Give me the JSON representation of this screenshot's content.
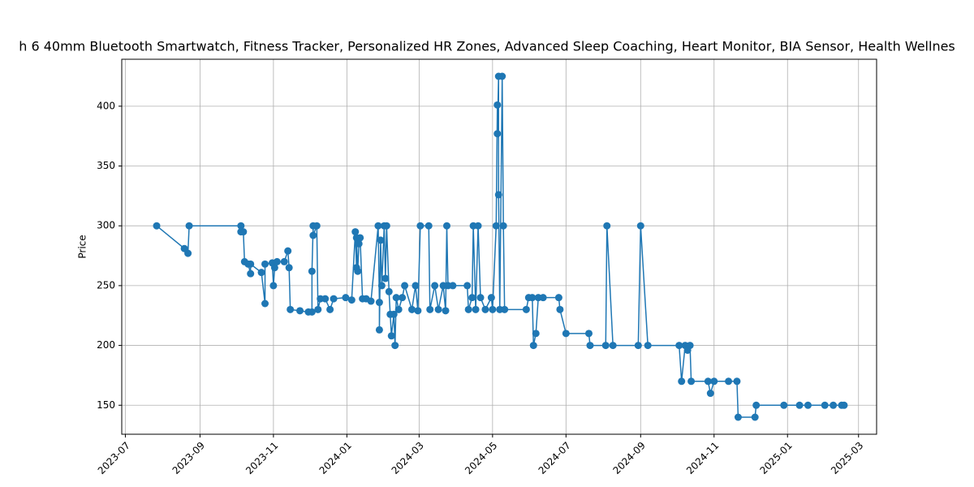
{
  "chart_data": {
    "type": "line",
    "title": "h 6 40mm Bluetooth Smartwatch, Fitness Tracker, Personalized HR Zones, Advanced Sleep Coaching, Heart Monitor, BIA Sensor, Health Wellnes",
    "y_label": "Price",
    "grid": true,
    "marker": "circle",
    "xlim": [
      "2023-06-28",
      "2025-03-16"
    ],
    "xticks": [
      {
        "value": "2023-07-01",
        "label": "2023-07"
      },
      {
        "value": "2023-09-01",
        "label": "2023-09"
      },
      {
        "value": "2023-11-01",
        "label": "2023-11"
      },
      {
        "value": "2024-01-01",
        "label": "2024-01"
      },
      {
        "value": "2024-03-01",
        "label": "2024-03"
      },
      {
        "value": "2024-05-01",
        "label": "2024-05"
      },
      {
        "value": "2024-07-01",
        "label": "2024-07"
      },
      {
        "value": "2024-09-01",
        "label": "2024-09"
      },
      {
        "value": "2024-11-01",
        "label": "2024-11"
      },
      {
        "value": "2025-01-01",
        "label": "2025-01"
      },
      {
        "value": "2025-03-01",
        "label": "2025-03"
      }
    ],
    "ylim": [
      125.75,
      439.25
    ],
    "yticks": [
      150,
      200,
      250,
      300,
      350,
      400
    ],
    "color": "#1f77b4",
    "x": [
      "2023-07-27",
      "2023-08-19",
      "2023-08-22",
      "2023-08-23",
      "2023-10-05",
      "2023-10-05",
      "2023-10-07",
      "2023-10-08",
      "2023-10-11",
      "2023-10-13",
      "2023-10-13",
      "2023-10-22",
      "2023-10-25",
      "2023-10-25",
      "2023-10-31",
      "2023-11-01",
      "2023-11-02",
      "2023-11-04",
      "2023-11-10",
      "2023-11-13",
      "2023-11-14",
      "2023-11-15",
      "2023-11-23",
      "2023-11-30",
      "2023-12-03",
      "2023-12-03",
      "2023-12-04",
      "2023-12-04",
      "2023-12-07",
      "2023-12-08",
      "2023-12-10",
      "2023-12-14",
      "2023-12-18",
      "2023-12-21",
      "2023-12-31",
      "2024-01-05",
      "2024-01-08",
      "2024-01-09",
      "2024-01-09",
      "2024-01-10",
      "2024-01-11",
      "2024-01-12",
      "2024-01-14",
      "2024-01-17",
      "2024-01-21",
      "2024-01-27",
      "2024-01-28",
      "2024-01-28",
      "2024-01-29",
      "2024-01-30",
      "2024-02-01",
      "2024-02-02",
      "2024-02-03",
      "2024-02-05",
      "2024-02-06",
      "2024-02-07",
      "2024-02-09",
      "2024-02-10",
      "2024-02-11",
      "2024-02-13",
      "2024-02-16",
      "2024-02-18",
      "2024-02-24",
      "2024-02-27",
      "2024-02-29",
      "2024-03-02",
      "2024-03-09",
      "2024-03-10",
      "2024-03-14",
      "2024-03-17",
      "2024-03-21",
      "2024-03-23",
      "2024-03-24",
      "2024-03-25",
      "2024-03-29",
      "2024-04-10",
      "2024-04-11",
      "2024-04-14",
      "2024-04-15",
      "2024-04-17",
      "2024-04-19",
      "2024-04-21",
      "2024-04-25",
      "2024-04-30",
      "2024-05-01",
      "2024-05-04",
      "2024-05-05",
      "2024-05-05",
      "2024-05-06",
      "2024-05-06",
      "2024-05-07",
      "2024-05-09",
      "2024-05-10",
      "2024-05-11",
      "2024-05-29",
      "2024-05-31",
      "2024-06-03",
      "2024-06-04",
      "2024-06-06",
      "2024-06-08",
      "2024-06-12",
      "2024-06-25",
      "2024-06-26",
      "2024-07-01",
      "2024-07-20",
      "2024-07-21",
      "2024-08-03",
      "2024-08-04",
      "2024-08-09",
      "2024-08-30",
      "2024-09-01",
      "2024-09-07",
      "2024-10-03",
      "2024-10-05",
      "2024-10-08",
      "2024-10-10",
      "2024-10-12",
      "2024-10-13",
      "2024-10-27",
      "2024-10-29",
      "2024-11-01",
      "2024-11-13",
      "2024-11-20",
      "2024-11-21",
      "2024-12-05",
      "2024-12-06",
      "2024-12-29",
      "2025-01-11",
      "2025-01-18",
      "2025-02-01",
      "2025-02-08",
      "2025-02-15",
      "2025-02-17"
    ],
    "values": [
      300,
      281,
      277,
      300,
      300,
      295,
      295,
      270,
      268,
      260,
      268,
      261,
      235,
      268,
      269,
      250,
      265,
      270,
      270,
      279,
      265,
      230,
      229,
      228,
      228,
      262,
      300,
      292,
      300,
      230,
      239,
      239,
      230,
      239,
      240,
      238,
      295,
      265,
      290,
      262,
      285,
      290,
      239,
      239,
      237,
      300,
      236,
      213,
      288,
      250,
      300,
      256,
      300,
      245,
      226,
      208,
      226,
      200,
      240,
      230,
      240,
      250,
      230,
      250,
      229,
      300,
      300,
      230,
      250,
      230,
      250,
      229,
      300,
      250,
      250,
      250,
      230,
      240,
      300,
      230,
      300,
      240,
      230,
      240,
      230,
      300,
      401,
      377,
      425,
      326,
      230,
      425,
      300,
      230,
      230,
      240,
      240,
      200,
      210,
      240,
      240,
      240,
      230,
      210,
      210,
      200,
      200,
      300,
      200,
      200,
      300,
      200,
      200,
      170,
      200,
      196,
      200,
      170,
      170,
      160,
      170,
      170,
      170,
      140,
      140,
      150,
      150,
      150,
      150,
      150,
      150,
      150,
      150
    ]
  }
}
